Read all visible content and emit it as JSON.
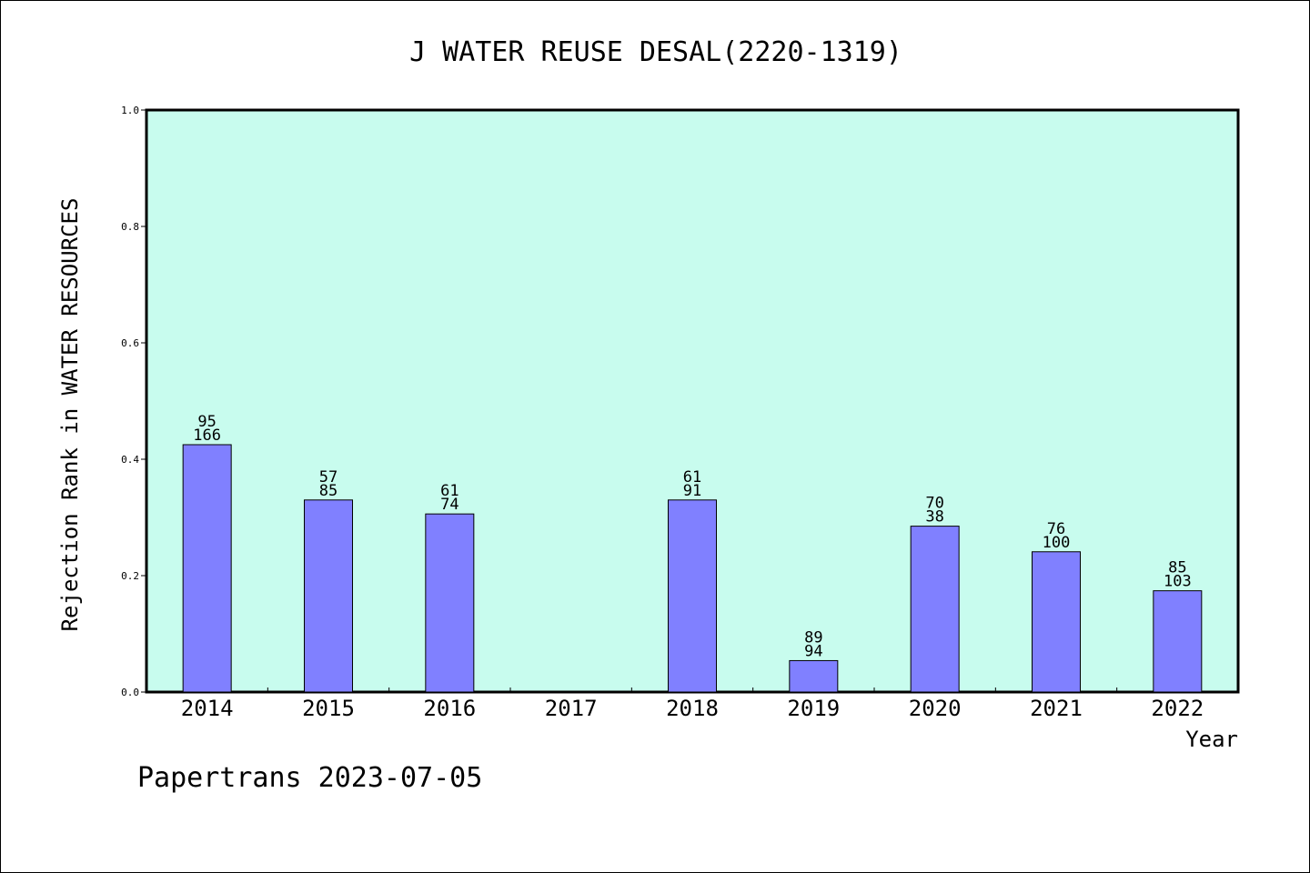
{
  "chart_data": {
    "type": "bar",
    "title": "J WATER REUSE DESAL(2220-1319)",
    "ylabel": "Rejection Rank in WATER RESOURCES",
    "xlabel": "Year",
    "ylim": [
      0,
      1.0
    ],
    "yticks": [
      "0.0",
      "0.2",
      "0.4",
      "0.6",
      "0.8",
      "1.0"
    ],
    "ytick_values": [
      0,
      0.2,
      0.4,
      0.6,
      0.8,
      1.0
    ],
    "grid": false,
    "categories": [
      "2014",
      "2015",
      "2016",
      "2017",
      "2018",
      "2019",
      "2020",
      "2021",
      "2022"
    ],
    "values": [
      0.425,
      0.33,
      0.306,
      null,
      0.33,
      0.054,
      0.285,
      0.241,
      0.174
    ],
    "labels_top": [
      "95",
      "57",
      "61",
      "",
      "61",
      "89",
      "70",
      "76",
      "85"
    ],
    "labels_bottom": [
      "166",
      "85",
      "74",
      "",
      "91",
      "94",
      "38",
      "100",
      "103"
    ],
    "colors": {
      "plot_bg": "#c8fcee",
      "bar": "#8080ff",
      "bar_edge": "#000000"
    }
  },
  "footer": "Papertrans 2023-07-05"
}
